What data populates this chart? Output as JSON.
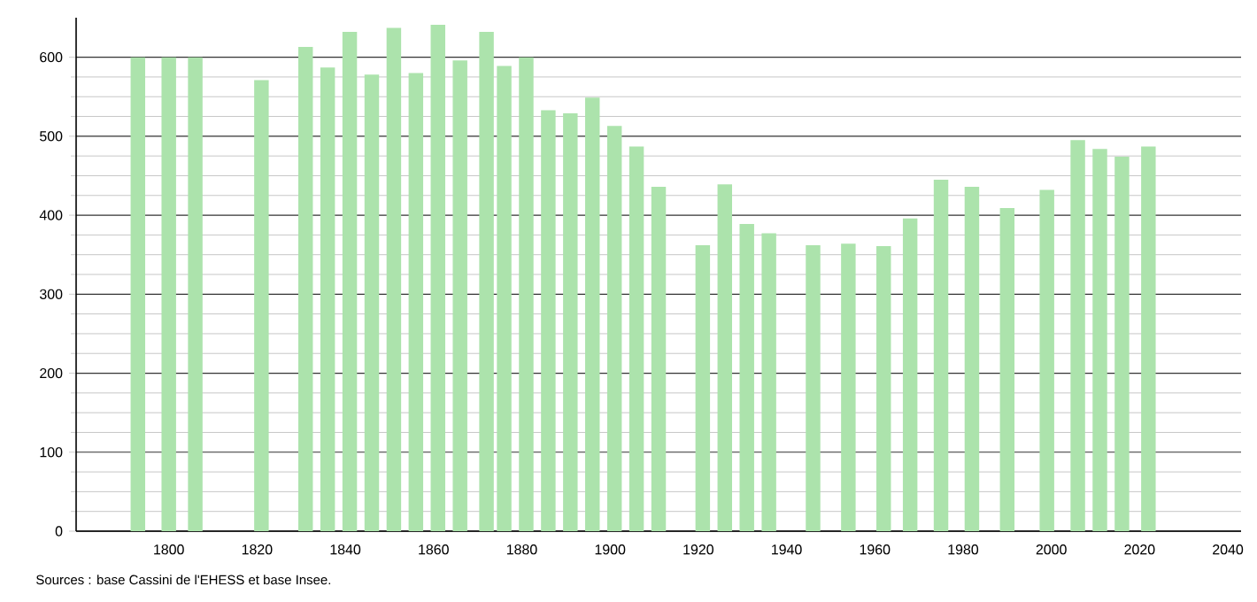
{
  "chart_data": {
    "type": "bar",
    "x": [
      1793,
      1800,
      1806,
      1821,
      1831,
      1836,
      1841,
      1846,
      1851,
      1856,
      1861,
      1866,
      1872,
      1876,
      1881,
      1886,
      1891,
      1896,
      1901,
      1906,
      1911,
      1921,
      1926,
      1931,
      1936,
      1946,
      1954,
      1962,
      1968,
      1975,
      1982,
      1990,
      1999,
      2006,
      2011,
      2016,
      2022
    ],
    "values": [
      600,
      600,
      600,
      571,
      613,
      587,
      632,
      578,
      637,
      580,
      641,
      596,
      632,
      589,
      600,
      533,
      529,
      549,
      513,
      487,
      436,
      362,
      439,
      389,
      377,
      362,
      364,
      361,
      396,
      445,
      436,
      409,
      432,
      495,
      484,
      474,
      487
    ],
    "color": "#ace3ac",
    "xlim": [
      1779,
      2043
    ],
    "xticks": [
      1800,
      1820,
      1840,
      1860,
      1880,
      1900,
      1920,
      1940,
      1960,
      1980,
      2000,
      2020,
      2040
    ],
    "ylim": [
      0,
      650
    ],
    "yticks": [
      0,
      100,
      200,
      300,
      400,
      500,
      600
    ],
    "grid": "y",
    "annotations": [
      "Sources : base Cassini de l'EHESS et base Insee."
    ]
  }
}
